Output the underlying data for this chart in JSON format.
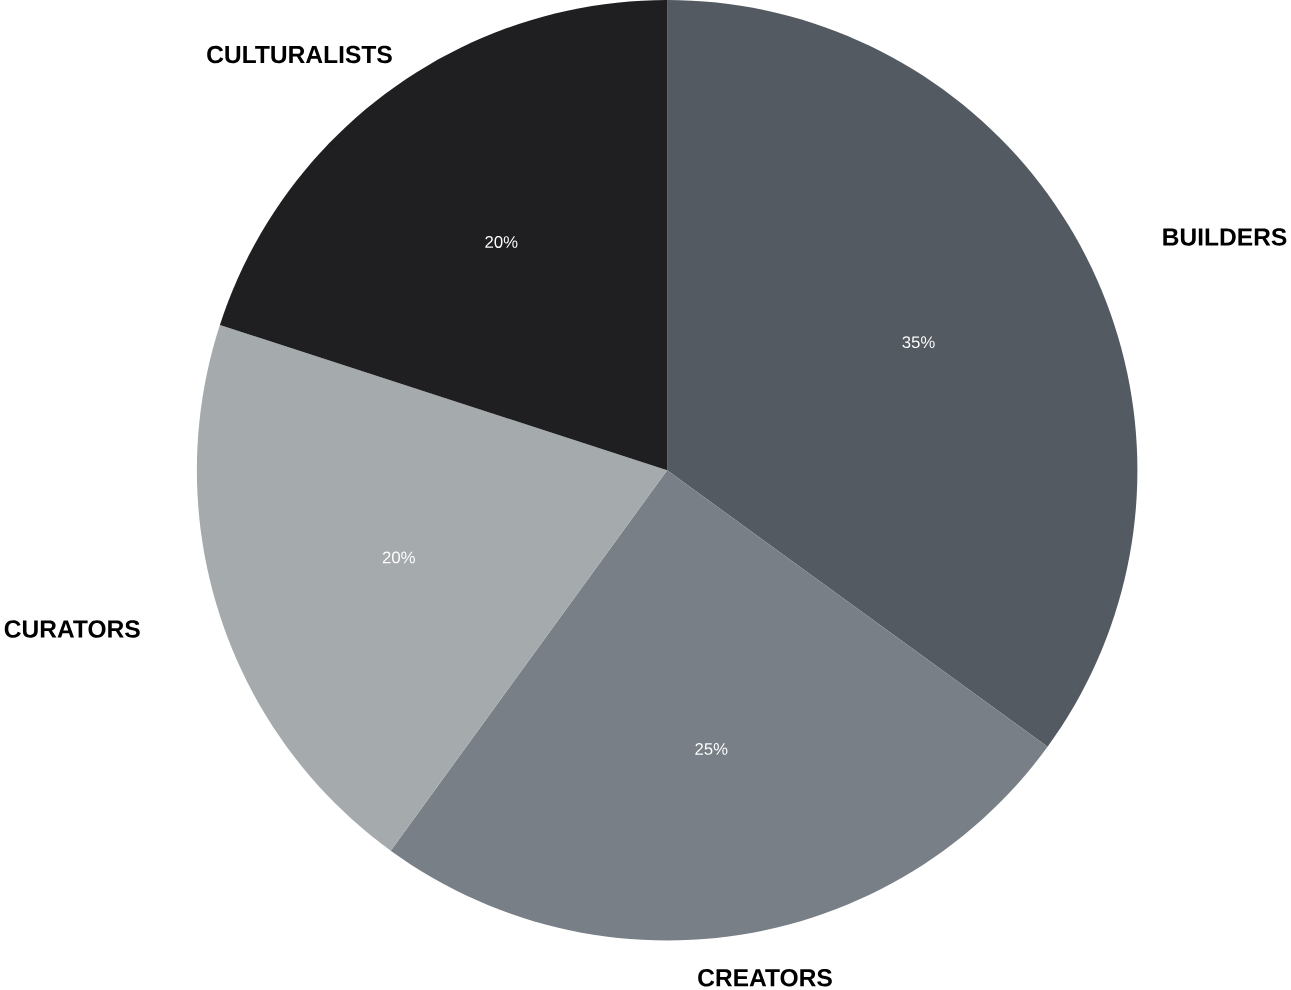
{
  "chart_data": {
    "type": "pie",
    "categories": [
      "BUILDERS",
      "CREATORS",
      "CURATORS",
      "CULTURALISTS"
    ],
    "values": [
      35,
      25,
      20,
      20
    ],
    "value_labels": [
      "35%",
      "25%",
      "20%",
      "20%"
    ],
    "colors": [
      "#545a61",
      "#787f87",
      "#a5aaad",
      "#1f1f21"
    ]
  }
}
